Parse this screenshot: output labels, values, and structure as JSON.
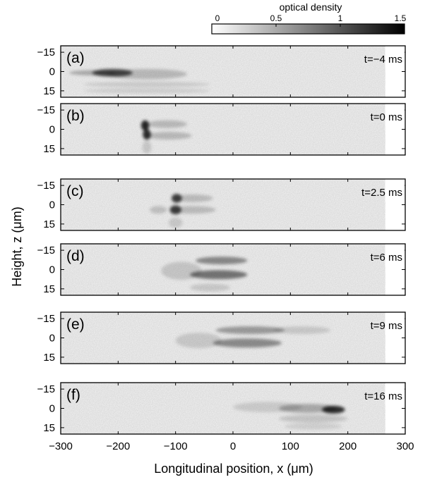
{
  "chart_data": {
    "type": "heatmap",
    "colorbar": {
      "label": "optical density",
      "ticks": [
        "0",
        "0.5",
        "1",
        "1.5"
      ],
      "range": [
        0,
        1.5
      ],
      "colormap": "white-to-black"
    },
    "xlabel": "Longitudinal position, x (μm)",
    "ylabel": "Height, z (μm)",
    "xlim": [
      -300,
      300
    ],
    "ylim": [
      -20,
      20
    ],
    "y_inverted": true,
    "xticks": [
      "−300",
      "−200",
      "−100",
      "0",
      "100",
      "200",
      "300"
    ],
    "yticks": [
      "−15",
      "0",
      "15"
    ],
    "data_extent_x": [
      -300,
      265
    ],
    "panels": [
      {
        "label": "(a)",
        "time": "t=−4 ms",
        "blobs": [
          {
            "x": -210,
            "z": 1,
            "sx": 35,
            "sz": 3,
            "od": 1.0
          },
          {
            "x": -150,
            "z": 2,
            "sx": 70,
            "sz": 4,
            "od": 0.3
          },
          {
            "x": -245,
            "z": 1,
            "sx": 40,
            "sz": 2,
            "od": 0.4
          },
          {
            "x": -150,
            "z": 10,
            "sx": 110,
            "sz": 2,
            "od": 0.18
          },
          {
            "x": -150,
            "z": 15,
            "sx": 110,
            "sz": 2,
            "od": 0.15
          }
        ]
      },
      {
        "label": "(b)",
        "time": "t=0 ms",
        "blobs": [
          {
            "x": -153,
            "z": -3,
            "sx": 7,
            "sz": 4,
            "od": 1.25
          },
          {
            "x": -150,
            "z": 4,
            "sx": 7,
            "sz": 4,
            "od": 1.2
          },
          {
            "x": -115,
            "z": -4,
            "sx": 35,
            "sz": 3,
            "od": 0.3
          },
          {
            "x": -112,
            "z": 5,
            "sx": 40,
            "sz": 3,
            "od": 0.3
          },
          {
            "x": -150,
            "z": 14,
            "sx": 8,
            "sz": 5,
            "od": 0.2
          }
        ]
      },
      {
        "label": "(c)",
        "time": "t=2.5 ms",
        "blobs": [
          {
            "x": -98,
            "z": -5,
            "sx": 9,
            "sz": 3.5,
            "od": 1.05
          },
          {
            "x": -100,
            "z": 4,
            "sx": 10,
            "sz": 3.5,
            "od": 1.05
          },
          {
            "x": -70,
            "z": -5,
            "sx": 35,
            "sz": 3,
            "od": 0.28
          },
          {
            "x": -70,
            "z": 4,
            "sx": 40,
            "sz": 3,
            "od": 0.28
          },
          {
            "x": -130,
            "z": 4,
            "sx": 15,
            "sz": 3,
            "od": 0.25
          },
          {
            "x": -100,
            "z": 14,
            "sx": 12,
            "sz": 4,
            "od": 0.2
          }
        ]
      },
      {
        "label": "(d)",
        "time": "t=6 ms",
        "blobs": [
          {
            "x": -20,
            "z": -7,
            "sx": 45,
            "sz": 3,
            "od": 0.62
          },
          {
            "x": -25,
            "z": 4,
            "sx": 50,
            "sz": 3.5,
            "od": 0.75
          },
          {
            "x": -90,
            "z": 1,
            "sx": 35,
            "sz": 7,
            "od": 0.22
          },
          {
            "x": -40,
            "z": 14,
            "sx": 35,
            "sz": 3,
            "od": 0.2
          }
        ]
      },
      {
        "label": "(e)",
        "time": "t=9 ms",
        "blobs": [
          {
            "x": 30,
            "z": -6,
            "sx": 60,
            "sz": 3,
            "od": 0.5
          },
          {
            "x": 25,
            "z": 4,
            "sx": 60,
            "sz": 3.5,
            "od": 0.6
          },
          {
            "x": -60,
            "z": 2,
            "sx": 40,
            "sz": 6,
            "od": 0.2
          },
          {
            "x": 120,
            "z": -6,
            "sx": 50,
            "sz": 3,
            "od": 0.2
          }
        ]
      },
      {
        "label": "(f)",
        "time": "t=16 ms",
        "blobs": [
          {
            "x": 175,
            "z": 1,
            "sx": 20,
            "sz": 3,
            "od": 1.2
          },
          {
            "x": 130,
            "z": 0,
            "sx": 50,
            "sz": 3.5,
            "od": 0.4
          },
          {
            "x": 60,
            "z": -1,
            "sx": 60,
            "sz": 4,
            "od": 0.18
          },
          {
            "x": 140,
            "z": 8,
            "sx": 60,
            "sz": 3,
            "od": 0.22
          },
          {
            "x": 140,
            "z": 14,
            "sx": 50,
            "sz": 2.5,
            "od": 0.15
          }
        ]
      }
    ]
  }
}
